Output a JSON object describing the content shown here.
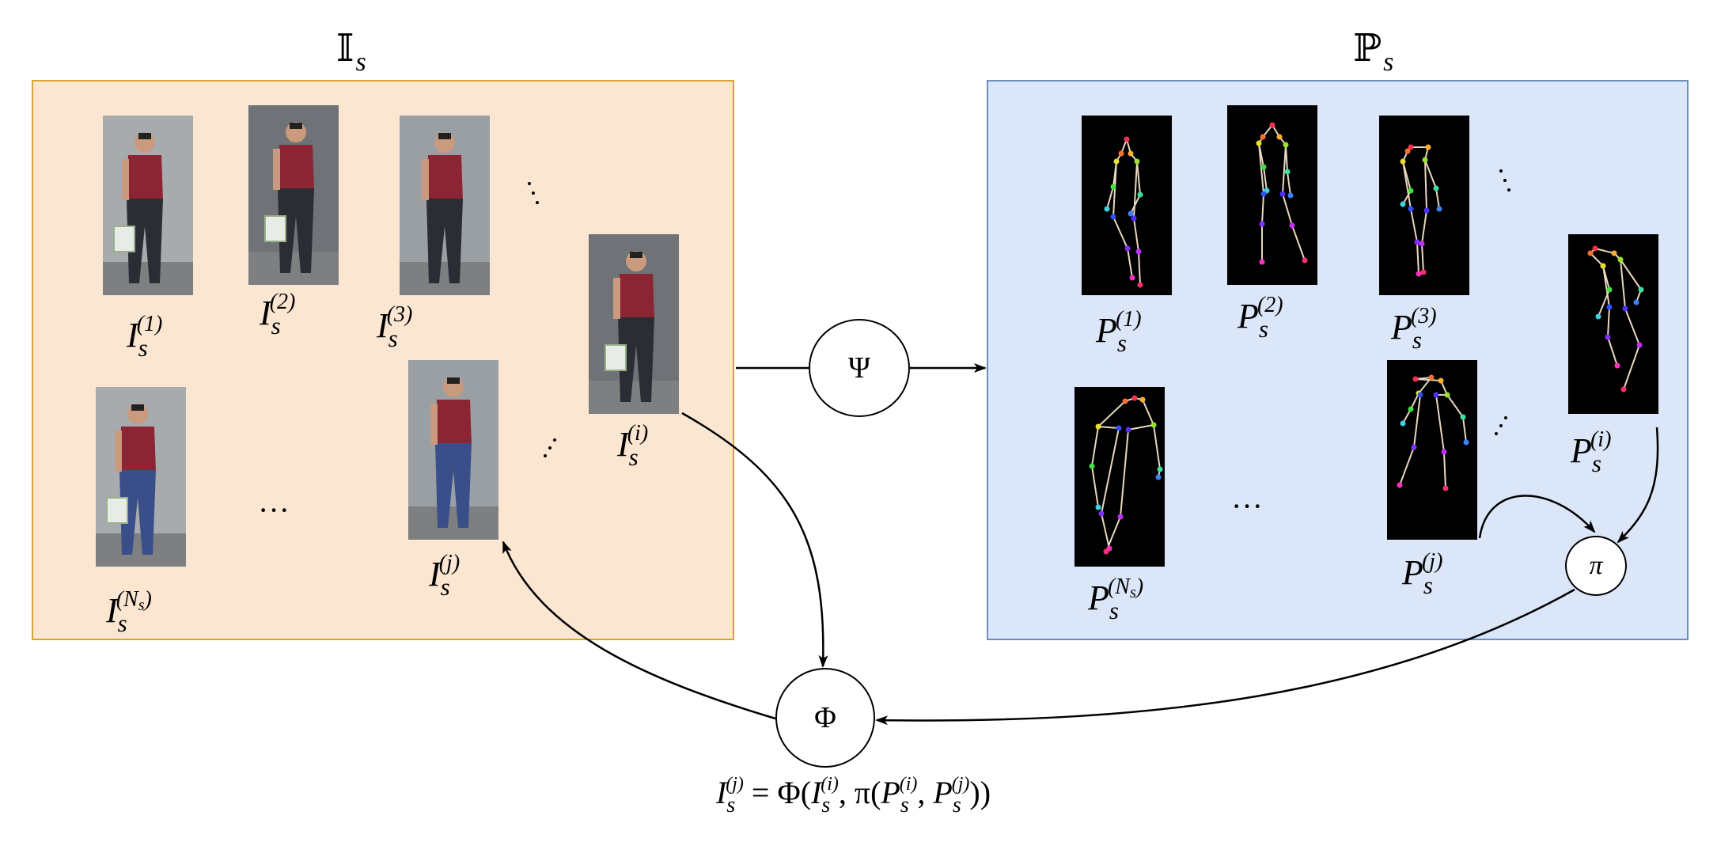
{
  "sets": {
    "images_title": "𝕀",
    "images_title_sub": "s",
    "poses_title": "ℙ",
    "poses_title_sub": "s"
  },
  "images": [
    {
      "base": "I",
      "sub": "s",
      "sup": "(1)"
    },
    {
      "base": "I",
      "sub": "s",
      "sup": "(2)"
    },
    {
      "base": "I",
      "sub": "s",
      "sup": "(3)"
    },
    {
      "base": "I",
      "sub": "s",
      "sup": "(i)"
    },
    {
      "base": "I",
      "sub": "s",
      "sup": "(N",
      "sup_sub": "s",
      "sup_close": ")"
    },
    {
      "base": "I",
      "sub": "s",
      "sup": "(j)"
    }
  ],
  "poses": [
    {
      "base": "P",
      "sub": "s",
      "sup": "(1)"
    },
    {
      "base": "P",
      "sub": "s",
      "sup": "(2)"
    },
    {
      "base": "P",
      "sub": "s",
      "sup": "(3)"
    },
    {
      "base": "P",
      "sub": "s",
      "sup": "(i)"
    },
    {
      "base": "P",
      "sub": "s",
      "sup": "(N",
      "sup_sub": "s",
      "sup_close": ")"
    },
    {
      "base": "P",
      "sub": "s",
      "sup": "(j)"
    }
  ],
  "ellipsis": "···",
  "operators": {
    "psi": "Ψ",
    "pi": "π",
    "phi": "Φ"
  },
  "formula": {
    "lhs_base": "I",
    "lhs_sub": "s",
    "lhs_sup": "(j)",
    "eq": " = Φ(",
    "a_base": "I",
    "a_sub": "s",
    "a_sup": "(i)",
    "mid": ", π(",
    "b_base": "P",
    "b_sub": "s",
    "b_sup": "(i)",
    "comma": ", ",
    "c_base": "P",
    "c_sub": "s",
    "c_sup": "(j)",
    "close": "))"
  },
  "colors": {
    "images_panel_fill": "#fbe6d2",
    "images_panel_border": "#d9a531",
    "poses_panel_fill": "#dbe6f8",
    "poses_panel_border": "#6c8ebf",
    "shirt": "#8b2433",
    "jeans": "#3a4f8a"
  }
}
